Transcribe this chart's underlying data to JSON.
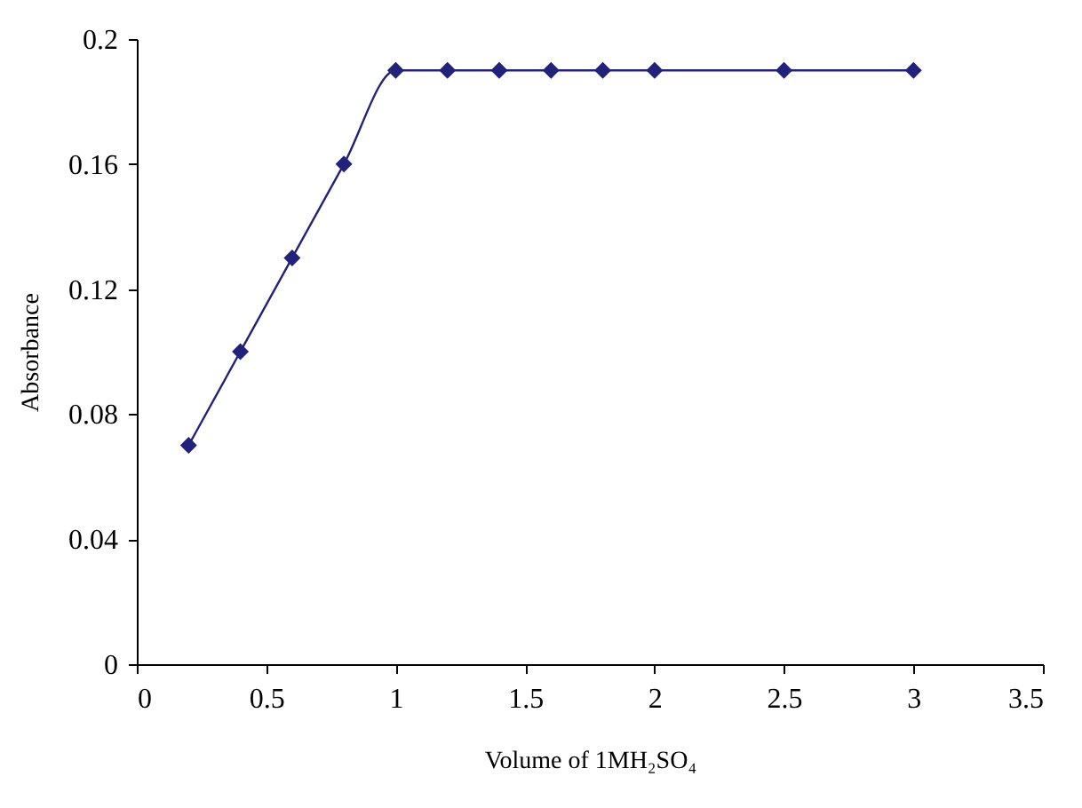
{
  "chart_data": {
    "type": "line",
    "xlabel": "Volume of 1MH₂SO₄",
    "ylabel": "Absorbance",
    "x": [
      0.2,
      0.4,
      0.6,
      0.8,
      1,
      1.2,
      1.4,
      1.6,
      1.8,
      2,
      2.5,
      3
    ],
    "series": [
      {
        "color": "#22227a",
        "values": [
          0.07,
          0.1,
          0.13,
          0.16,
          0.19,
          0.19,
          0.19,
          0.19,
          0.19,
          0.19,
          0.19,
          0.19
        ]
      }
    ],
    "xlim": [
      0,
      3.5
    ],
    "xticks": [
      0,
      0.5,
      1,
      1.5,
      2,
      2.5,
      3,
      3.5
    ],
    "ylim": [
      0,
      0.2
    ],
    "yticks": [
      0,
      0.04,
      0.08,
      0.12,
      0.16,
      0.2
    ],
    "marker": "diamond",
    "line_style": "solid",
    "grid": false,
    "legend": false
  }
}
